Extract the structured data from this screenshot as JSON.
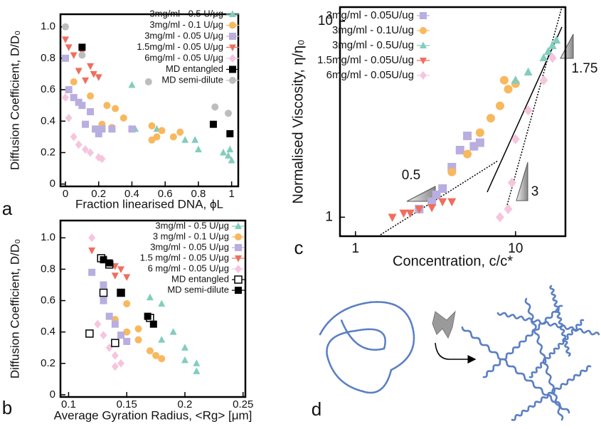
{
  "chart_data": [
    {
      "type": "scatter",
      "panel_label": "a",
      "y_label": "Diffusion Coefficient, D/D₀",
      "x_label": "Fraction linearised DNA, ϕL",
      "xlim": [
        -0.03,
        1.04
      ],
      "ylim": [
        -0.015,
        1.08
      ],
      "xticks": [
        0,
        0.2,
        0.4,
        0.6,
        0.8,
        1
      ],
      "yticks": [
        0,
        0.2,
        0.4,
        0.6,
        0.8,
        {
          "value": 1,
          "label": "1.0"
        }
      ],
      "series": [
        {
          "name": "3mg/ml - 0.5 U/μg",
          "color": "#82cdbd",
          "marker": "triangle",
          "x": [
            0.4,
            0.42,
            0.55,
            0.72,
            0.78,
            0.8,
            0.95,
            0.98,
            0.99,
            1
          ],
          "values": [
            0.63,
            0.35,
            0.35,
            0.28,
            0.28,
            0.22,
            0.2,
            0.18,
            0.22,
            0.15
          ]
        },
        {
          "name": "3mg/ml - 0.1 U/μg",
          "color": "#f8b85e",
          "marker": "circle",
          "x": [
            0.05,
            0.15,
            0.22,
            0.25,
            0.28,
            0.3,
            0.35,
            0.52,
            0.52,
            0.55,
            0.58,
            0.65,
            0.69
          ],
          "values": [
            0.65,
            0.56,
            0.38,
            0.5,
            0.36,
            0.48,
            0.42,
            0.37,
            0.28,
            0.3,
            0.34,
            0.3,
            0.33
          ]
        },
        {
          "name": "3mg/ml - 0.05 U/μg",
          "color": "#b8aee0",
          "marker": "square",
          "x": [
            0,
            0.02,
            0.05,
            0.08,
            0.1,
            0.12,
            0.15,
            0.18,
            0.2,
            0.22,
            0.28,
            0.4
          ],
          "values": [
            0.8,
            0.6,
            0.55,
            0.52,
            0.5,
            0.38,
            0.46,
            0.35,
            0.32,
            0.35,
            0.35,
            0.35
          ]
        },
        {
          "name": "1.5mg/ml - 0.05 U/μg",
          "color": "#ef6e5e",
          "marker": "triangle-down",
          "x": [
            0,
            0.02,
            0.05,
            0.08,
            0.1,
            0.12,
            0.15,
            0.17,
            0.2
          ],
          "values": [
            0.92,
            0.87,
            0.82,
            0.72,
            0.84,
            0.66,
            0.75,
            0.7,
            0.68
          ]
        },
        {
          "name": "6mg/ml - 0.05 U/μg",
          "color": "#f6c5dd",
          "marker": "diamond",
          "x": [
            0,
            0.02,
            0.05,
            0.08,
            0.12,
            0.15,
            0.2,
            0.22
          ],
          "values": [
            0.55,
            0.42,
            0.3,
            0.25,
            0.22,
            0.2,
            0.17,
            0.16
          ]
        },
        {
          "name": "MD entangled",
          "color": "#000000",
          "marker": "square",
          "x": [
            0.1,
            0.89,
            0.99
          ],
          "values": [
            0.87,
            0.38,
            0.32
          ]
        },
        {
          "name": "MD semi-dilute",
          "color": "#bdbdbd",
          "marker": "circle",
          "x": [
            0,
            0.1,
            0.5,
            0.9,
            0.98
          ],
          "values": [
            1.0,
            0.82,
            0.65,
            0.49,
            0.45
          ]
        }
      ]
    },
    {
      "type": "scatter",
      "panel_label": "b",
      "y_label": "Diffusion Coefficient, D/D₀",
      "x_label": "Average Gyration Radius, <Rg> [μm]",
      "xlim": [
        0.093,
        0.252
      ],
      "ylim": [
        -0.014,
        1.11
      ],
      "xticks": [
        0.1,
        0.15,
        0.2,
        0.25
      ],
      "yticks": [
        0,
        0.2,
        0.4,
        0.6,
        0.8,
        {
          "value": 1,
          "label": "1.0"
        }
      ],
      "series": [
        {
          "name": "3mg/ml - 0.5 U/μg",
          "color": "#82cdbd",
          "marker": "triangle",
          "x": [
            0.17,
            0.18,
            0.18,
            0.19,
            0.2,
            0.2,
            0.21,
            0.21
          ],
          "values": [
            0.62,
            0.58,
            0.35,
            0.4,
            0.3,
            0.22,
            0.2,
            0.15
          ]
        },
        {
          "name": "3 mg/ml - 0.1 U/μg",
          "color": "#f8b85e",
          "marker": "circle",
          "x": [
            0.14,
            0.15,
            0.15,
            0.16,
            0.16,
            0.17,
            0.175,
            0.18
          ],
          "values": [
            0.48,
            0.58,
            0.4,
            0.42,
            0.35,
            0.28,
            0.25,
            0.23
          ]
        },
        {
          "name": "3mg/ml - 0.05 U/μg",
          "color": "#b8aee0",
          "marker": "square",
          "x": [
            0.12,
            0.13,
            0.13,
            0.135,
            0.14,
            0.145,
            0.15
          ],
          "values": [
            0.78,
            0.7,
            0.6,
            0.5,
            0.45,
            0.38,
            0.34
          ]
        },
        {
          "name": "1.5 mg/ml - 0.05 U/μg",
          "color": "#ef6e5e",
          "marker": "triangle-down",
          "x": [
            0.12,
            0.13,
            0.14,
            0.14,
            0.145,
            0.15
          ],
          "values": [
            0.92,
            0.87,
            0.82,
            0.76,
            0.8,
            0.75
          ]
        },
        {
          "name": "6 mg/ml - 0.05 U/μg",
          "color": "#f6c5dd",
          "marker": "diamond",
          "x": [
            0.12,
            0.125,
            0.13,
            0.135,
            0.14,
            0.14,
            0.145
          ],
          "values": [
            1.0,
            0.45,
            0.38,
            0.3,
            0.25,
            0.18,
            0.2
          ]
        },
        {
          "name": "MD entangled",
          "color": "#000000",
          "marker": "square-open",
          "x": [
            0.118,
            0.128,
            0.13,
            0.135,
            0.14,
            0.145,
            0.17
          ],
          "values": [
            0.39,
            0.87,
            0.65,
            0.83,
            0.33,
            0.65,
            0.49
          ]
        },
        {
          "name": "MD semi-dilute",
          "color": "#000000",
          "marker": "square",
          "x": [
            0.13,
            0.135,
            0.145,
            0.168,
            0.173
          ],
          "values": [
            0.86,
            0.84,
            0.65,
            0.5,
            0.45
          ]
        }
      ]
    },
    {
      "type": "scatter",
      "panel_label": "c",
      "xscale": "log",
      "yscale": "log",
      "y_label": "Normalised Viscosity, η/η₀",
      "x_label": "Concentration, c/c*",
      "xlim": [
        0.8,
        20.5
      ],
      "ylim": [
        0.8,
        11.8
      ],
      "xticks": [
        1,
        10
      ],
      "yticks": [
        1,
        10
      ],
      "annotations": [
        "0.5",
        "1.75",
        "3"
      ],
      "series": [
        {
          "name": "3mg/ml - 0.05U/ug",
          "color": "#b8aee0",
          "marker": "square",
          "x": [
            2.5,
            3,
            3.2,
            3.5,
            4,
            4.5,
            5,
            5.5,
            6
          ],
          "values": [
            1.1,
            1.2,
            1.3,
            1.4,
            1.8,
            2.2,
            2.6,
            2.3,
            2.4
          ]
        },
        {
          "name": "3mg/ml - 0.1U/ug",
          "color": "#f8b85e",
          "marker": "circle",
          "x": [
            4,
            5,
            6,
            7,
            8,
            8.5,
            9,
            10
          ],
          "values": [
            1.7,
            2.1,
            2.7,
            3.2,
            3.7,
            5.0,
            4.5,
            4.8
          ]
        },
        {
          "name": "3mg/ml - 0.5U/ug",
          "color": "#82cdbd",
          "marker": "triangle",
          "x": [
            10,
            12,
            15,
            16,
            17,
            18
          ],
          "values": [
            5,
            5.5,
            6.5,
            7,
            7.5,
            8
          ]
        },
        {
          "name": "1.5mg/ml - 0.05U/ug",
          "color": "#ef6e5e",
          "marker": "triangle-down",
          "x": [
            1.7,
            2,
            2.2,
            2.5,
            3,
            3.5,
            4
          ],
          "values": [
            1.0,
            1.05,
            1.05,
            1.1,
            1.12,
            1.2,
            1.2
          ]
        },
        {
          "name": "6mg/ml - 0.05U/ug",
          "color": "#f6c5dd",
          "marker": "diamond",
          "x": [
            8,
            9,
            9.5,
            10,
            12,
            15,
            17
          ],
          "values": [
            1.0,
            1.1,
            1.5,
            2.5,
            3.5,
            5,
            6.5
          ]
        }
      ]
    }
  ],
  "diagram": {
    "panel_label": "d"
  }
}
